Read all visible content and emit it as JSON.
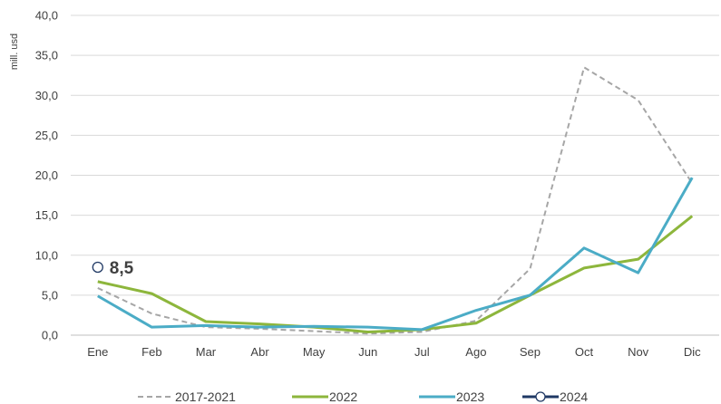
{
  "chart_data": {
    "type": "line",
    "title": "",
    "xlabel": "",
    "ylabel": "mill. usd",
    "ylim": [
      0,
      40
    ],
    "grid": true,
    "legend_position": "bottom",
    "categories": [
      "Ene",
      "Feb",
      "Mar",
      "Abr",
      "May",
      "Jun",
      "Jul",
      "Ago",
      "Sep",
      "Oct",
      "Nov",
      "Dic"
    ],
    "y_ticks": [
      "0,0",
      "5,0",
      "10,0",
      "15,0",
      "20,0",
      "25,0",
      "30,0",
      "35,0",
      "40,0"
    ],
    "series": [
      {
        "name": "2017-2021",
        "color": "#a6a6a6",
        "style": "dashed",
        "values": [
          5.9,
          2.7,
          1.0,
          0.8,
          0.5,
          0.2,
          0.4,
          1.8,
          8.3,
          33.5,
          29.4,
          19.0
        ]
      },
      {
        "name": "2022",
        "color": "#8db63c",
        "style": "solid",
        "values": [
          6.7,
          5.2,
          1.7,
          1.4,
          1.0,
          0.4,
          0.7,
          1.5,
          5.0,
          8.4,
          9.5,
          14.9
        ]
      },
      {
        "name": "2023",
        "color": "#4bacc6",
        "style": "solid",
        "values": [
          4.9,
          1.0,
          1.2,
          1.0,
          1.1,
          1.0,
          0.7,
          3.1,
          5.0,
          10.9,
          7.8,
          19.7
        ]
      },
      {
        "name": "2024",
        "color": "#1f3864",
        "style": "marker",
        "values": [
          8.5,
          null,
          null,
          null,
          null,
          null,
          null,
          null,
          null,
          null,
          null,
          null
        ],
        "value_label": "8,5"
      }
    ]
  }
}
